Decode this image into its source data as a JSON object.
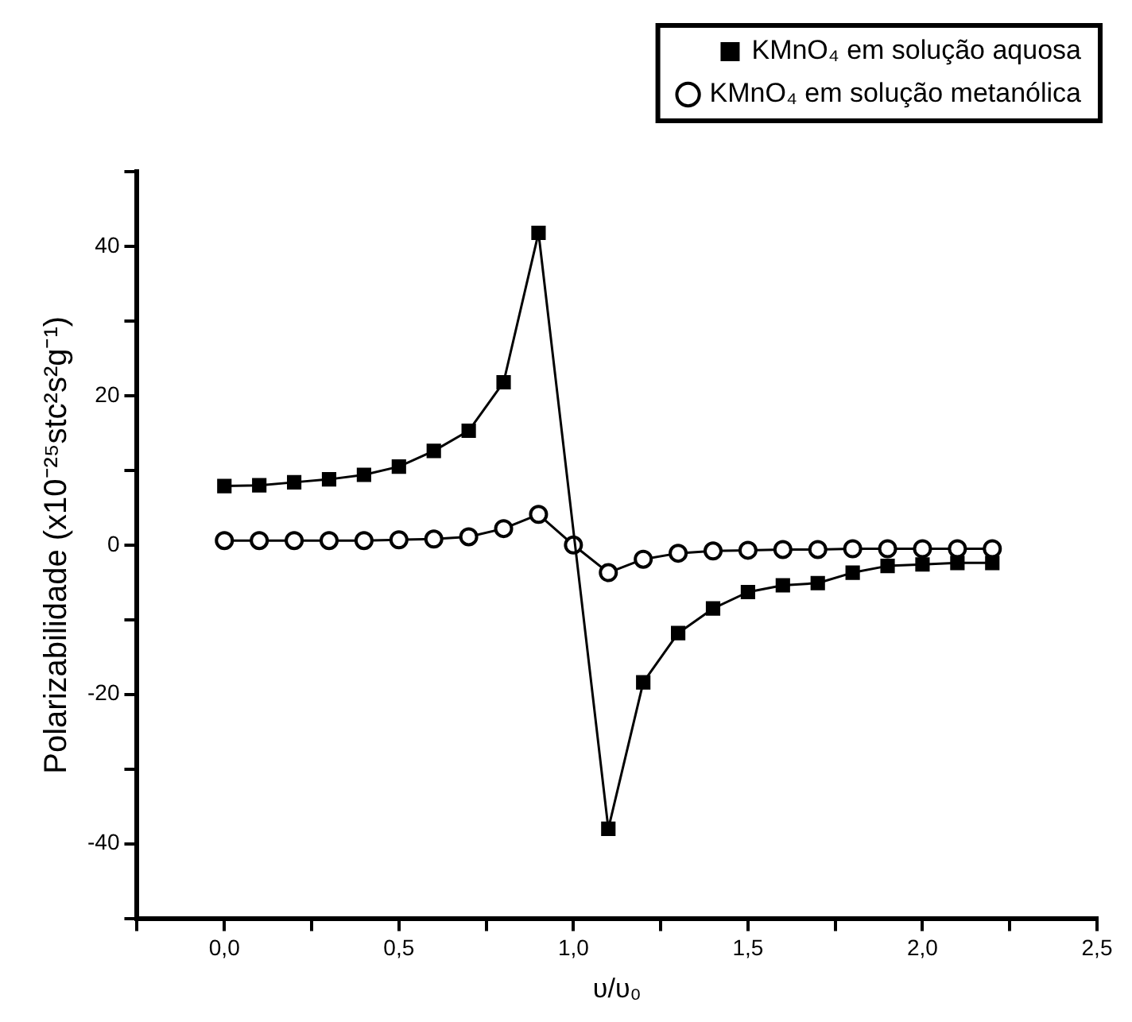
{
  "chart_data": {
    "type": "line",
    "xlabel": "υ/υ₀",
    "ylabel": "Polarizabilidade (x10⁻²⁵stc²s²g⁻¹)",
    "x": [
      0,
      0.1,
      0.2,
      0.3,
      0.4,
      0.5,
      0.6,
      0.7,
      0.8,
      0.9,
      1.0,
      1.1,
      1.2,
      1.3,
      1.4,
      1.5,
      1.6,
      1.7,
      1.8,
      1.9,
      2.0,
      2.1,
      2.2
    ],
    "series": [
      {
        "name": "KMnO₄ em solução aquosa",
        "color": "#000000",
        "marker": "square",
        "values": [
          7.9,
          8,
          8.4,
          8.8,
          9.4,
          10.5,
          12.6,
          15.3,
          21.8,
          41.8,
          null,
          -38,
          -18.4,
          -11.8,
          -8.5,
          -6.3,
          -5.4,
          -5.1,
          -3.7,
          -2.8,
          -2.6,
          -2.4,
          -2.4
        ]
      },
      {
        "name": "KMnO₄ em solução metanólica",
        "color": "#000000",
        "marker": "circle",
        "values": [
          0.6,
          0.6,
          0.6,
          0.6,
          0.6,
          0.7,
          0.8,
          1.1,
          2.2,
          4.1,
          0,
          -3.7,
          -1.9,
          -1.1,
          -0.8,
          -0.7,
          -0.6,
          -0.6,
          -0.5,
          -0.5,
          -0.5,
          -0.5,
          -0.5
        ]
      }
    ],
    "xlim": [
      -0.25,
      2.5
    ],
    "xticks": [
      {
        "value": -0.25,
        "label": null
      },
      {
        "value": 0,
        "label": "0,0"
      },
      {
        "value": 0.25,
        "label": null
      },
      {
        "value": 0.5,
        "label": "0,5"
      },
      {
        "value": 0.75,
        "label": null
      },
      {
        "value": 1,
        "label": "1,0"
      },
      {
        "value": 1.25,
        "label": null
      },
      {
        "value": 1.5,
        "label": "1,5"
      },
      {
        "value": 1.75,
        "label": null
      },
      {
        "value": 2,
        "label": "2,0"
      },
      {
        "value": 2.25,
        "label": null
      },
      {
        "value": 2.5,
        "label": "2,5"
      }
    ],
    "ylim": [
      -50,
      50
    ],
    "yticks": [
      {
        "value": -50,
        "label": null
      },
      -40,
      {
        "value": -30,
        "label": null
      },
      -20,
      {
        "value": -10,
        "label": null
      },
      0,
      {
        "value": 10,
        "label": null
      },
      20,
      {
        "value": 30,
        "label": null
      },
      40,
      {
        "value": 50,
        "label": null
      }
    ],
    "legend": "top right",
    "grid": false,
    "line_style": "solid"
  }
}
